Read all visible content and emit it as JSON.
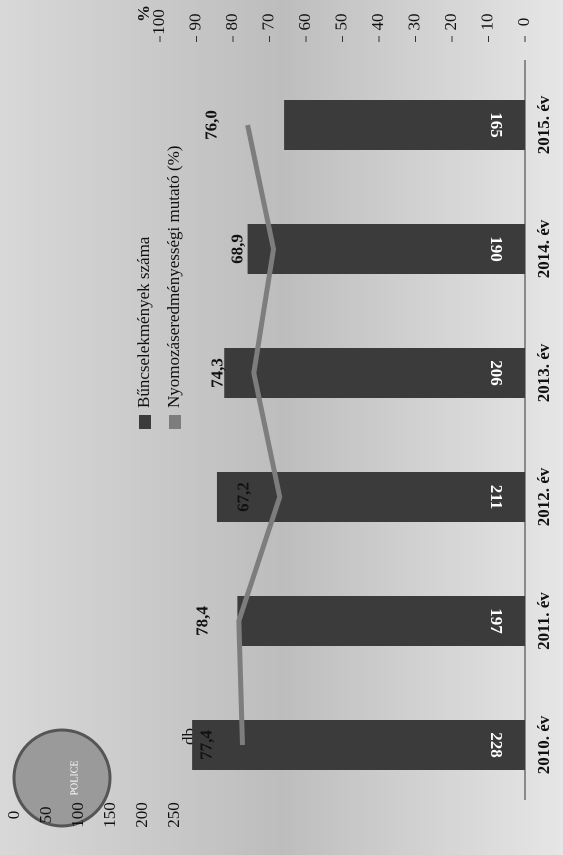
{
  "logo_text": "POLICE",
  "chart_data": {
    "type": "bar",
    "categories": [
      "2010. év",
      "2011. év",
      "2012. év",
      "2013. év",
      "2014. év",
      "2015. év"
    ],
    "series": [
      {
        "name": "Bűncselekmények száma",
        "type": "bar",
        "color": "#3b3b3b",
        "axis": "y",
        "values": [
          228,
          197,
          211,
          206,
          190,
          165
        ]
      },
      {
        "name": "Nyomozáseredményességi mutató (%)",
        "type": "line",
        "color": "#7d7d7d",
        "axis": "y2",
        "values": [
          77.4,
          78.4,
          67.2,
          74.3,
          68.9,
          76.0
        ],
        "value_labels": [
          "77,4",
          "78,4",
          "67,2",
          "74,3",
          "68,9",
          "76,0"
        ]
      }
    ],
    "ylabel": "db",
    "ylim": [
      0,
      250
    ],
    "yticks": [
      0,
      50,
      100,
      150,
      200,
      250
    ],
    "y2label": "%",
    "y2lim": [
      0,
      100
    ],
    "y2ticks": [
      0,
      10,
      20,
      30,
      40,
      50,
      60,
      70,
      80,
      90,
      100
    ]
  }
}
